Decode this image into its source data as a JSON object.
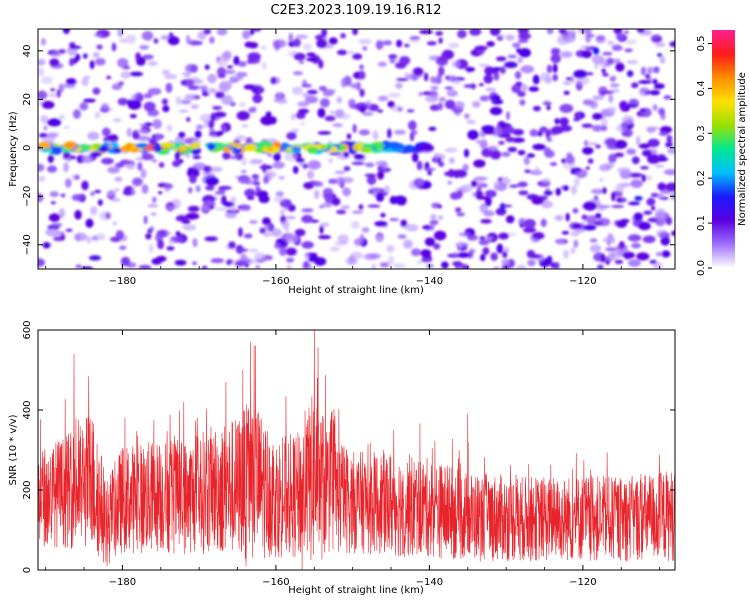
{
  "title": "C2E3.2023.109.19.16.R12",
  "colors": {
    "snr_line": "#e8232a",
    "axes": "#000000",
    "colormap": [
      "#ffffff",
      "#a070ff",
      "#5a00e0",
      "#1a1aff",
      "#00bfff",
      "#00e890",
      "#9be000",
      "#ffe000",
      "#ff8c00",
      "#ff1a1a",
      "#ff2090"
    ]
  },
  "chart_data": [
    {
      "type": "heatmap",
      "name": "spectrogram",
      "xlabel": "Height of straight line (km)",
      "ylabel": "Frequency (Hz)",
      "xlim": [
        -191,
        -108
      ],
      "ylim": [
        -50,
        49
      ],
      "xticks": [
        -180,
        -160,
        -140,
        -120
      ],
      "yticks": [
        -40,
        -20,
        0,
        20,
        40
      ],
      "colorbar": {
        "label": "Normalized spectral amplitude",
        "range": [
          0,
          0.53
        ],
        "ticks": [
          "0.0",
          "0.1",
          "0.2",
          "0.3",
          "0.4",
          "0.5"
        ]
      },
      "features": {
        "signal_band_frequency_hz": 0,
        "signal_band_x_range": [
          -191,
          -140
        ],
        "signal_band_peak_amplitude": 0.45,
        "background_amplitude_range": [
          0.0,
          0.12
        ],
        "denser_noise_x_range": [
          -140,
          -108
        ]
      }
    },
    {
      "type": "line",
      "name": "snr",
      "xlabel": "Height of straight line (km)",
      "ylabel": "SNR (10 * v/v)",
      "xlim": [
        -191,
        -108
      ],
      "ylim": [
        0,
        600
      ],
      "xticks": [
        -180,
        -160,
        -140,
        -120
      ],
      "yticks": [
        0,
        200,
        400,
        600
      ],
      "envelope": [
        {
          "x": -191,
          "low": 60,
          "high": 380
        },
        {
          "x": -186,
          "low": 50,
          "high": 450
        },
        {
          "x": -184,
          "low": 40,
          "high": 530
        },
        {
          "x": -182,
          "low": 10,
          "high": 300
        },
        {
          "x": -180,
          "low": 40,
          "high": 400
        },
        {
          "x": -175,
          "low": 40,
          "high": 420
        },
        {
          "x": -172,
          "low": 35,
          "high": 420
        },
        {
          "x": -168,
          "low": 40,
          "high": 470
        },
        {
          "x": -165,
          "low": 30,
          "high": 500
        },
        {
          "x": -163,
          "low": 20,
          "high": 570
        },
        {
          "x": -160,
          "low": 30,
          "high": 430
        },
        {
          "x": -157,
          "low": 25,
          "high": 450
        },
        {
          "x": -155,
          "low": 5,
          "high": 600
        },
        {
          "x": -153,
          "low": 35,
          "high": 460
        },
        {
          "x": -150,
          "low": 40,
          "high": 380
        },
        {
          "x": -147,
          "low": 40,
          "high": 380
        },
        {
          "x": -145,
          "low": 30,
          "high": 390
        },
        {
          "x": -140,
          "low": 30,
          "high": 360
        },
        {
          "x": -135,
          "low": 20,
          "high": 320
        },
        {
          "x": -130,
          "low": 20,
          "high": 310
        },
        {
          "x": -125,
          "low": 20,
          "high": 300
        },
        {
          "x": -120,
          "low": 20,
          "high": 310
        },
        {
          "x": -115,
          "low": 20,
          "high": 300
        },
        {
          "x": -108,
          "low": 20,
          "high": 330
        }
      ],
      "spikes": [
        {
          "x": -186.3,
          "y": 540
        },
        {
          "x": -182.0,
          "y": 10
        },
        {
          "x": -172.0,
          "y": 420
        },
        {
          "x": -166.5,
          "y": 470
        },
        {
          "x": -164.3,
          "y": 500
        },
        {
          "x": -163.3,
          "y": 570
        },
        {
          "x": -162.7,
          "y": 560
        },
        {
          "x": -163.9,
          "y": 10
        },
        {
          "x": -155.0,
          "y": 600
        },
        {
          "x": -154.6,
          "y": 480
        },
        {
          "x": -156.6,
          "y": 0
        },
        {
          "x": -135.0,
          "y": 390
        }
      ]
    }
  ]
}
